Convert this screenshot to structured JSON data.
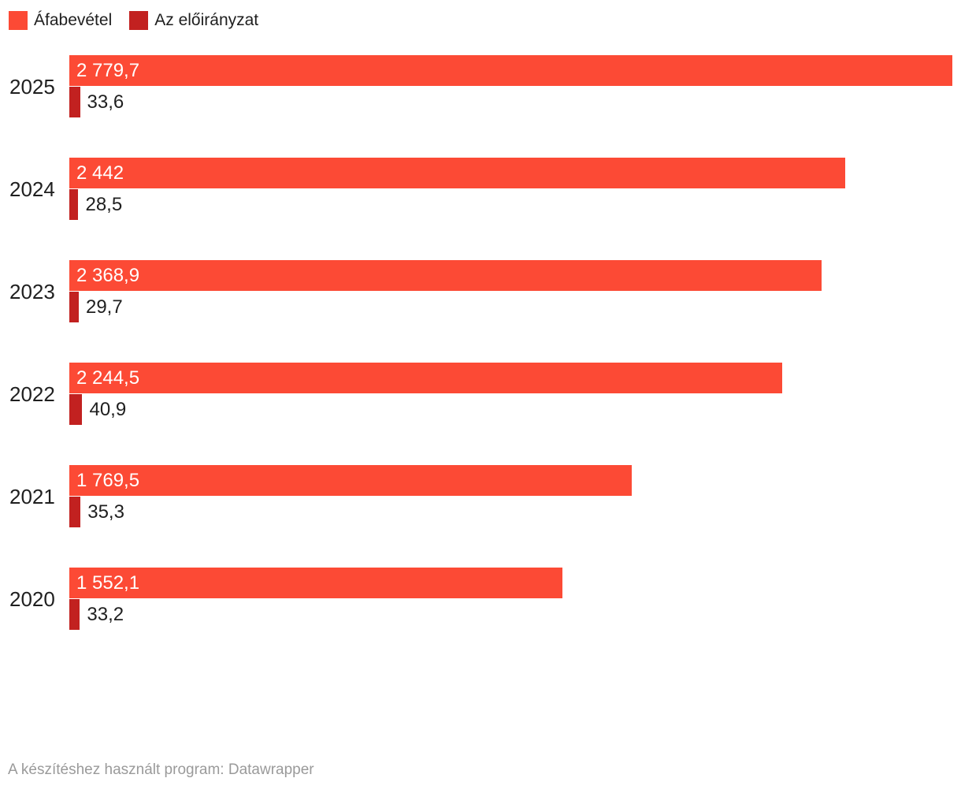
{
  "legend": {
    "items": [
      {
        "label": "Áfabevétel",
        "color": "#fc4a35"
      },
      {
        "label": "Az előirányzat",
        "color": "#c22120"
      }
    ]
  },
  "chart_data": {
    "type": "bar",
    "orientation": "horizontal",
    "title": "",
    "xlabel": "",
    "ylabel": "",
    "grid": false,
    "legend_position": "top-left",
    "value_labels": "shown",
    "categories": [
      "2025",
      "2024",
      "2023",
      "2022",
      "2021",
      "2020"
    ],
    "series": [
      {
        "name": "Áfabevétel",
        "color": "#fc4a35",
        "values": [
          2779.7,
          2442,
          2368.9,
          2244.5,
          1769.5,
          1552.1
        ],
        "labels": [
          "2 779,7",
          "2 442",
          "2 368,9",
          "2 244,5",
          "1 769,5",
          "1 552,1"
        ],
        "label_position": "inside-left",
        "label_color": "#ffffff"
      },
      {
        "name": "Az előirányzat",
        "color": "#c22120",
        "values": [
          33.6,
          28.5,
          29.7,
          40.9,
          35.3,
          33.2
        ],
        "labels": [
          "33,6",
          "28,5",
          "29,7",
          "40,9",
          "35,3",
          "33,2"
        ],
        "label_position": "outside-right",
        "label_color": "#1f1f1f"
      }
    ],
    "xmax": 2779.7
  },
  "footer": {
    "attribution": "A készítéshez használt program: Datawrapper"
  },
  "colors": {
    "text_dark": "#1f1f1f",
    "footer_gray": "#9a9a9a",
    "background": "#ffffff"
  }
}
